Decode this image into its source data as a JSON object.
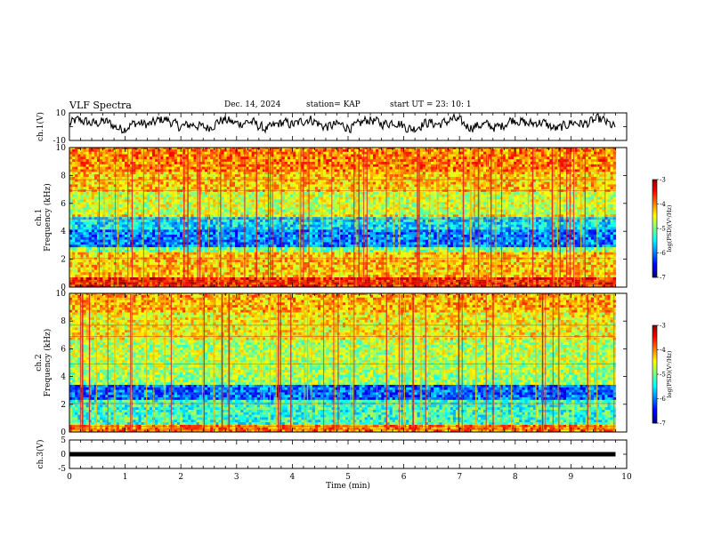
{
  "header": {
    "title": "VLF Spectra",
    "date": "Dec. 14, 2024",
    "station": "station= KAP",
    "start_ut": "start  UT  =   23: 10: 1"
  },
  "chart_data": [
    {
      "type": "line",
      "name": "ch1-waveform",
      "ylabel": "ch.1(V)",
      "ylim": [
        -10,
        10
      ],
      "ytick_labels": [
        "10",
        "-10"
      ],
      "xlim": [
        0,
        10
      ],
      "data_range_x": [
        0,
        9.8
      ],
      "approx_mean": 2,
      "approx_amplitude": 6
    },
    {
      "type": "heatmap",
      "name": "ch1-spectrogram",
      "ylabel": "ch.1 Frequency (kHz)",
      "ylim": [
        0,
        10
      ],
      "ytick_labels": [
        "0",
        "2",
        "4",
        "6",
        "8",
        "10"
      ],
      "xlim": [
        0,
        10
      ],
      "data_range_x": [
        0,
        9.8
      ],
      "colorbar": {
        "label": "log(PSD)(V²/Hz)",
        "range": [
          -7,
          -3
        ],
        "tick_labels": [
          "-3",
          "-4",
          "-5",
          "-6",
          "-7"
        ]
      },
      "bands": [
        {
          "from": 0,
          "to": 0.6,
          "level": -3.6
        },
        {
          "from": 0.6,
          "to": 2.4,
          "level": -4.3
        },
        {
          "from": 2.4,
          "to": 2.8,
          "level": -5.0
        },
        {
          "from": 2.8,
          "to": 4.0,
          "level": -6.0
        },
        {
          "from": 4.0,
          "to": 4.9,
          "level": -5.6
        },
        {
          "from": 4.9,
          "to": 5.2,
          "level": -4.4
        },
        {
          "from": 5.2,
          "to": 6.8,
          "level": -4.7
        },
        {
          "from": 6.8,
          "to": 8.2,
          "level": -4.3
        },
        {
          "from": 8.2,
          "to": 10,
          "level": -4.0
        }
      ]
    },
    {
      "type": "heatmap",
      "name": "ch2-spectrogram",
      "ylabel": "ch.2 Frequency (kHz)",
      "ylim": [
        0,
        10
      ],
      "ytick_labels": [
        "0",
        "2",
        "4",
        "6",
        "8",
        "10"
      ],
      "xlim": [
        0,
        10
      ],
      "data_range_x": [
        0,
        9.8
      ],
      "colorbar": {
        "label": "log(PSD)(V²/Hz)",
        "range": [
          -7,
          -3
        ],
        "tick_labels": [
          "-3",
          "-4",
          "-5",
          "-6",
          "-7"
        ]
      },
      "bands": [
        {
          "from": 0,
          "to": 0.5,
          "level": -4.0
        },
        {
          "from": 0.5,
          "to": 2.2,
          "level": -5.3
        },
        {
          "from": 2.2,
          "to": 3.4,
          "level": -6.1
        },
        {
          "from": 3.4,
          "to": 4.2,
          "level": -4.9
        },
        {
          "from": 4.2,
          "to": 6.5,
          "level": -4.8
        },
        {
          "from": 6.5,
          "to": 8.5,
          "level": -4.5
        },
        {
          "from": 8.5,
          "to": 10,
          "level": -4.2
        }
      ]
    },
    {
      "type": "line",
      "name": "ch3-level",
      "ylabel": "ch.3(V)",
      "ylim": [
        -5,
        5
      ],
      "ytick_labels": [
        "5",
        "0",
        "-5"
      ],
      "xlim": [
        0,
        10
      ],
      "data_range_x": [
        0,
        9.8
      ],
      "level": 0
    }
  ],
  "x_axis": {
    "label": "Time  (min)",
    "range": [
      0,
      10
    ],
    "tick_labels": [
      "0",
      "1",
      "2",
      "3",
      "4",
      "5",
      "6",
      "7",
      "8",
      "9",
      "10"
    ]
  }
}
